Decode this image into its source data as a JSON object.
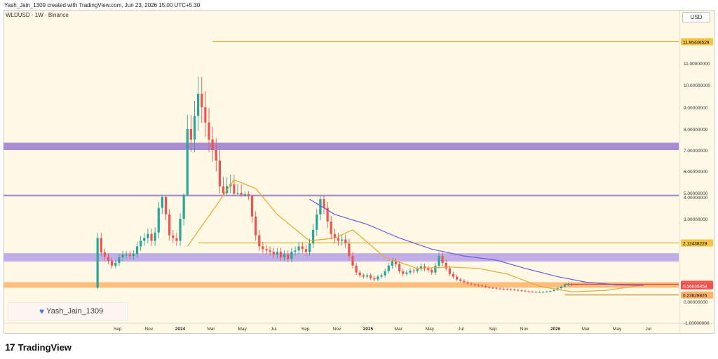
{
  "header": {
    "credit": "Yash_Jain_1309 created with TradingView.com, Jun 23, 2026 15:00 UTC+5:30"
  },
  "chart_title": "WLDUSD · 1W · Binance",
  "currency": "USD",
  "watermark": "Yash_Jain_1309",
  "brand": "TradingView",
  "colors": {
    "background": "#fff9e5",
    "bull": "#26a69a",
    "bear": "#ef5350",
    "zone": "#9c7ad1",
    "orange_band": "#ffb36a",
    "level_line": "#e0ab16",
    "ma_fast": "#f0a52a",
    "ma_slow": "#6a5be2"
  },
  "chart_data": {
    "type": "candlestick",
    "title": "WLDUSD · 1W · Binance",
    "interval": "1W",
    "currency": "USD",
    "start_date": "2023-07-24",
    "y_range": [
      -1.0,
      12.0
    ],
    "y_ticks": [
      {
        "v": 11,
        "label": "11.00000000"
      },
      {
        "v": 10,
        "label": "10.00000000"
      },
      {
        "v": 9,
        "label": "9.00000000"
      },
      {
        "v": 8,
        "label": "8.00000000"
      },
      {
        "v": 7,
        "label": "7.00000000"
      },
      {
        "v": 6,
        "label": "6.00000000"
      },
      {
        "v": 5,
        "label": "5.00000000"
      },
      {
        "v": 4,
        "label": "4.00000000"
      },
      {
        "v": 3,
        "label": "3.00000000"
      },
      {
        "v": 0,
        "label": "0.00000000"
      },
      {
        "v": -1,
        "label": "-1.00000000"
      }
    ],
    "x_labels": [
      {
        "label": "Sep",
        "date": "2023-09-01",
        "bold": false
      },
      {
        "label": "Nov",
        "date": "2023-11-01",
        "bold": false
      },
      {
        "label": "2024",
        "date": "2024-01-01",
        "bold": true
      },
      {
        "label": "Mar",
        "date": "2024-03-01",
        "bold": false
      },
      {
        "label": "May",
        "date": "2024-05-01",
        "bold": false
      },
      {
        "label": "Jul",
        "date": "2024-07-01",
        "bold": false
      },
      {
        "label": "Sep",
        "date": "2024-09-01",
        "bold": false
      },
      {
        "label": "Nov",
        "date": "2024-11-01",
        "bold": false
      },
      {
        "label": "2025",
        "date": "2025-01-01",
        "bold": true
      },
      {
        "label": "Mar",
        "date": "2025-03-01",
        "bold": false
      },
      {
        "label": "May",
        "date": "2025-05-01",
        "bold": false
      },
      {
        "label": "Jul",
        "date": "2025-07-01",
        "bold": false
      },
      {
        "label": "Sep",
        "date": "2025-09-01",
        "bold": false
      },
      {
        "label": "Nov",
        "date": "2025-11-01",
        "bold": false
      },
      {
        "label": "2026",
        "date": "2026-01-01",
        "bold": true
      },
      {
        "label": "Mar",
        "date": "2026-03-01",
        "bold": false
      },
      {
        "label": "May",
        "date": "2026-05-01",
        "bold": false
      },
      {
        "label": "Jul",
        "date": "2026-07-01",
        "bold": false
      }
    ],
    "price_labels": [
      {
        "v": 11.95446529,
        "label": "11.95446529",
        "bg": "#f6c343",
        "fg": "#000000"
      },
      {
        "v": 2.12438229,
        "label": "2.12438229",
        "bg": "#f6c343",
        "fg": "#000000"
      },
      {
        "v": 0.6252546,
        "label": "0.62525460",
        "bg": "#ef5350",
        "fg": "#ffffff"
      },
      {
        "v": 0.57053628,
        "label": "0.57053628",
        "bg": "#ffb36a",
        "fg": "#000000"
      },
      {
        "v": 0.56630858,
        "label": "0.56630858",
        "bg": "#ef5350",
        "fg": "#ffffff"
      },
      {
        "v": 0.23628826,
        "label": "0.23628826",
        "bg": "#ffb36a",
        "fg": "#000000"
      }
    ],
    "zones": [
      {
        "from": 7.0,
        "to": 7.35,
        "color": "#9c7ad1"
      },
      {
        "from": 4.15,
        "to": 4.55,
        "color": "#9c7ad1"
      },
      {
        "from": 1.45,
        "to": 1.75,
        "color": "#b7a0e6"
      },
      {
        "from": 0.5,
        "to": 0.7,
        "color": "#ffb36a"
      }
    ],
    "levels": [
      {
        "v": 11.95446529,
        "from_date": "2024-03-04",
        "color": "#e0ab16"
      },
      {
        "v": 2.12438229,
        "from_date": "2024-02-05",
        "color": "#e0ab16"
      },
      {
        "v": 0.6252546,
        "from_date": "2026-01-19",
        "color": "#e0514b"
      },
      {
        "v": 0.23628826,
        "from_date": "2026-01-19",
        "color": "#b08a20"
      }
    ],
    "series": [
      {
        "name": "WLDUSD",
        "close": [
          2.3,
          1.78,
          1.62,
          1.48,
          1.3,
          1.4,
          1.6,
          1.7,
          1.7,
          1.65,
          1.72,
          2.0,
          2.2,
          2.3,
          2.45,
          2.2,
          2.5,
          3.5,
          4.0,
          3.2,
          2.4,
          2.3,
          2.2,
          3.0,
          4.5,
          8.0,
          7.5,
          8.6,
          9.6,
          9.0,
          8.3,
          7.5,
          7.0,
          6.5,
          5.3,
          4.9,
          5.3,
          5.4,
          4.8,
          5.0,
          4.4,
          4.7,
          4.2,
          3.1,
          2.4,
          2.0,
          1.9,
          1.85,
          1.8,
          1.7,
          1.8,
          1.6,
          1.72,
          1.55,
          1.8,
          1.85,
          2.0,
          1.9,
          1.8,
          2.1,
          2.6,
          3.2,
          3.9,
          3.5,
          2.9,
          2.45,
          2.3,
          2.2,
          2.25,
          2.1,
          1.65,
          1.3,
          1.05,
          0.95,
          0.9,
          0.95,
          0.85,
          0.8,
          0.9,
          0.95,
          1.1,
          1.3,
          1.45,
          1.35,
          1.1,
          1.0,
          1.05,
          1.12,
          1.1,
          1.18,
          1.28,
          1.2,
          1.15,
          1.05,
          1.3,
          1.65,
          1.4,
          1.2,
          1.0,
          0.9,
          0.8,
          0.75,
          0.7,
          0.65,
          0.62,
          0.6,
          0.58,
          0.56,
          0.52,
          0.5,
          0.49,
          0.47,
          0.46,
          0.45,
          0.44,
          0.43,
          0.42,
          0.4,
          0.39,
          0.37,
          0.36,
          0.35,
          0.34,
          0.34,
          0.35,
          0.36,
          0.38,
          0.42,
          0.48,
          0.54,
          0.6,
          0.64,
          0.6
        ]
      },
      {
        "name": "MA fast",
        "values": [
          [
            2.0,
            "2024-01-15"
          ],
          [
            3.6,
            "2024-03-11"
          ],
          [
            5.6,
            "2024-04-15"
          ],
          [
            5.2,
            "2024-05-27"
          ],
          [
            3.2,
            "2024-07-08"
          ],
          [
            2.2,
            "2024-09-09"
          ],
          [
            2.3,
            "2024-10-28"
          ],
          [
            2.6,
            "2024-12-02"
          ],
          [
            1.6,
            "2025-02-03"
          ],
          [
            1.2,
            "2025-04-07"
          ],
          [
            1.25,
            "2025-06-09"
          ],
          [
            1.2,
            "2025-08-04"
          ],
          [
            1.0,
            "2025-09-29"
          ],
          [
            0.55,
            "2025-12-01"
          ],
          [
            0.35,
            "2026-02-02"
          ],
          [
            0.4,
            "2026-04-06"
          ],
          [
            0.6,
            "2026-06-22"
          ]
        ]
      },
      {
        "name": "MA slow",
        "values": [
          [
            3.9,
            "2024-09-09"
          ],
          [
            3.2,
            "2024-10-28"
          ],
          [
            2.8,
            "2024-12-30"
          ],
          [
            2.3,
            "2025-03-03"
          ],
          [
            1.9,
            "2025-05-05"
          ],
          [
            1.65,
            "2025-07-07"
          ],
          [
            1.5,
            "2025-09-08"
          ],
          [
            1.2,
            "2025-11-03"
          ],
          [
            0.9,
            "2026-01-05"
          ],
          [
            0.7,
            "2026-03-02"
          ],
          [
            0.6,
            "2026-05-04"
          ],
          [
            0.58,
            "2026-06-22"
          ]
        ]
      }
    ]
  }
}
